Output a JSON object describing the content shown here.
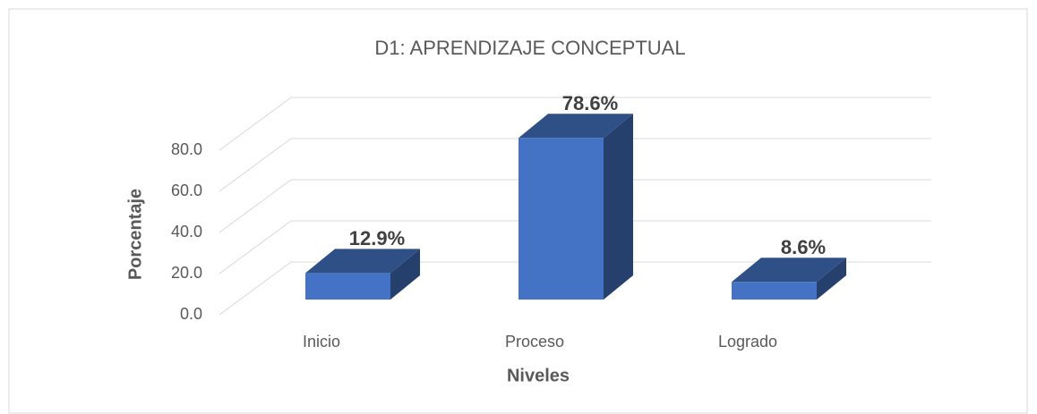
{
  "chart_data": {
    "type": "bar3d",
    "title": "D1: APRENDIZAJE CONCEPTUAL",
    "x_label": "Niveles",
    "y_label": "Porcentaje",
    "categories": [
      "Inicio",
      "Proceso",
      "Logrado"
    ],
    "values": [
      12.9,
      78.6,
      8.6
    ],
    "value_labels": [
      "12.9%",
      "78.6%",
      "8.6%"
    ],
    "color": "#4472c4",
    "ylim": [
      0,
      80
    ],
    "yticks": [
      {
        "value": 0,
        "label": "0.0"
      },
      {
        "value": 20,
        "label": "20.0"
      },
      {
        "value": 40,
        "label": "40.0"
      },
      {
        "value": 60,
        "label": "60.0"
      },
      {
        "value": 80,
        "label": "80.0"
      }
    ],
    "grid": true
  }
}
